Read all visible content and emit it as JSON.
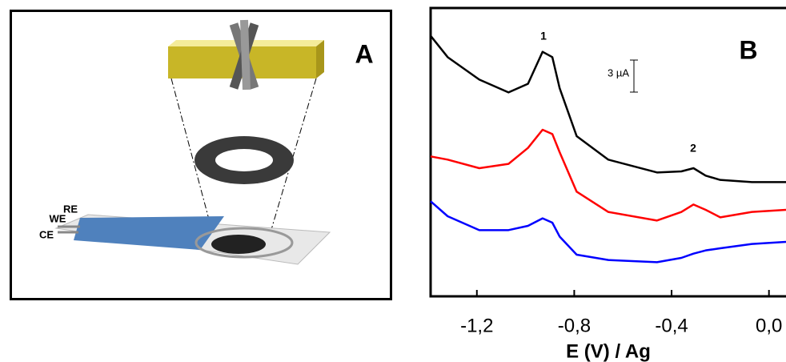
{
  "panel_a": {
    "label": "A",
    "electrodes": [
      "RE",
      "WE",
      "CE"
    ]
  },
  "chart_data": {
    "type": "line",
    "panel_label": "B",
    "xlabel": "E (V) / Ag",
    "annotations": [
      "1",
      "2"
    ],
    "scale_bar": {
      "label": "3 µA",
      "length": 3
    },
    "x": [
      -1.39,
      -1.32,
      -1.19,
      -1.07,
      -0.99,
      -0.93,
      -0.89,
      -0.86,
      -0.79,
      -0.66,
      -0.46,
      -0.36,
      -0.31,
      -0.26,
      -0.2,
      -0.07,
      0.07
    ],
    "series": [
      {
        "color": "#000000",
        "values": [
          24.4,
          22.4,
          20.3,
          19.1,
          19.9,
          22.9,
          22.4,
          19.5,
          15.0,
          12.8,
          11.6,
          11.7,
          12.0,
          11.3,
          10.9,
          10.7,
          10.7
        ]
      },
      {
        "color": "#ff0000",
        "values": [
          13.1,
          12.8,
          12.0,
          12.4,
          13.9,
          15.6,
          15.2,
          13.5,
          9.8,
          7.9,
          7.1,
          7.9,
          8.6,
          8.1,
          7.4,
          7.9,
          8.1
        ]
      },
      {
        "color": "#0000ff",
        "values": [
          8.9,
          7.5,
          6.2,
          6.2,
          6.6,
          7.3,
          6.9,
          5.6,
          3.9,
          3.4,
          3.2,
          3.6,
          4.0,
          4.3,
          4.5,
          4.9,
          5.1
        ]
      }
    ],
    "xlim": [
      -1.39,
      0.07
    ],
    "ylim": [
      0,
      27
    ],
    "xticks": [
      {
        "value": -1.2,
        "label": "-1,2"
      },
      {
        "value": -0.8,
        "label": "-0,8"
      },
      {
        "value": -0.4,
        "label": "-0,4"
      },
      {
        "value": 0,
        "label": "0,0"
      }
    ]
  }
}
